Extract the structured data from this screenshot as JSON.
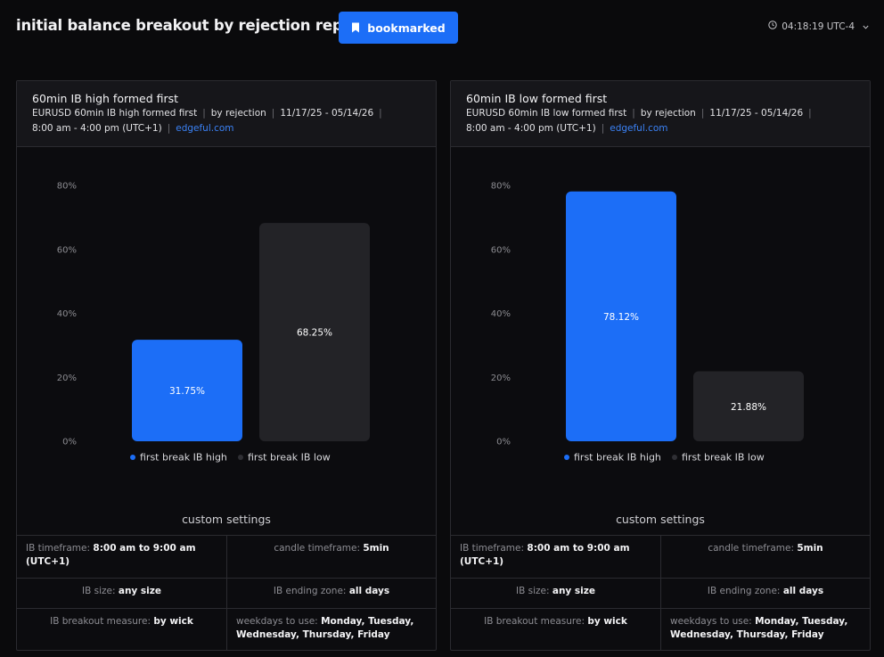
{
  "header": {
    "title": "initial balance breakout by rejection report",
    "bookmark_label": "bookmarked",
    "clock": "04:18:19 UTC-4"
  },
  "colors": {
    "accent": "#1c6ef7",
    "bar_high": "#1c6ef7",
    "bar_low": "#232327",
    "background": "#0a0a0c"
  },
  "panels": [
    {
      "title": "60min IB high formed first",
      "sub": {
        "instrument": "EURUSD 60min IB high formed first",
        "method": "by rejection",
        "dates": "11/17/25 - 05/14/26",
        "session": "8:00 am - 4:00 pm (UTC+1)",
        "source": "edgeful.com"
      },
      "settings_title": "custom settings",
      "settings": {
        "ib_timeframe_label": "IB timeframe:",
        "ib_timeframe_value": "8:00 am to 9:00 am (UTC+1)",
        "candle_timeframe_label": "candle timeframe:",
        "candle_timeframe_value": "5min",
        "ib_size_label": "IB size:",
        "ib_size_value": "any size",
        "ib_ending_zone_label": "IB ending zone:",
        "ib_ending_zone_value": "all days",
        "ib_breakout_label": "IB breakout measure:",
        "ib_breakout_value": "by wick",
        "weekdays_label": "weekdays to use:",
        "weekdays_value": "Monday, Tuesday, Wednesday, Thursday, Friday"
      }
    },
    {
      "title": "60min IB low formed first",
      "sub": {
        "instrument": "EURUSD 60min IB low formed first",
        "method": "by rejection",
        "dates": "11/17/25 - 05/14/26",
        "session": "8:00 am - 4:00 pm (UTC+1)",
        "source": "edgeful.com"
      },
      "settings_title": "custom settings",
      "settings": {
        "ib_timeframe_label": "IB timeframe:",
        "ib_timeframe_value": "8:00 am to 9:00 am (UTC+1)",
        "candle_timeframe_label": "candle timeframe:",
        "candle_timeframe_value": "5min",
        "ib_size_label": "IB size:",
        "ib_size_value": "any size",
        "ib_ending_zone_label": "IB ending zone:",
        "ib_ending_zone_value": "all days",
        "ib_breakout_label": "IB breakout measure:",
        "ib_breakout_value": "by wick",
        "weekdays_label": "weekdays to use:",
        "weekdays_value": "Monday, Tuesday, Wednesday, Thursday, Friday"
      }
    }
  ],
  "chart_data": [
    {
      "type": "bar",
      "title": "60min IB high formed first",
      "categories": [
        "first break IB high",
        "first break IB low"
      ],
      "values": [
        31.75,
        68.25
      ],
      "value_labels": [
        "31.75%",
        "68.25%"
      ],
      "bar_colors": [
        "#1c6ef7",
        "#232327"
      ],
      "yticks": [
        "0%",
        "20%",
        "40%",
        "60%",
        "80%"
      ],
      "ylim": [
        0,
        80
      ],
      "grid": false,
      "legend": "bottom"
    },
    {
      "type": "bar",
      "title": "60min IB low formed first",
      "categories": [
        "first break IB high",
        "first break IB low"
      ],
      "values": [
        78.12,
        21.88
      ],
      "value_labels": [
        "78.12%",
        "21.88%"
      ],
      "bar_colors": [
        "#1c6ef7",
        "#232327"
      ],
      "yticks": [
        "0%",
        "20%",
        "40%",
        "60%",
        "80%"
      ],
      "ylim": [
        0,
        80
      ],
      "grid": false,
      "legend": "bottom"
    }
  ]
}
